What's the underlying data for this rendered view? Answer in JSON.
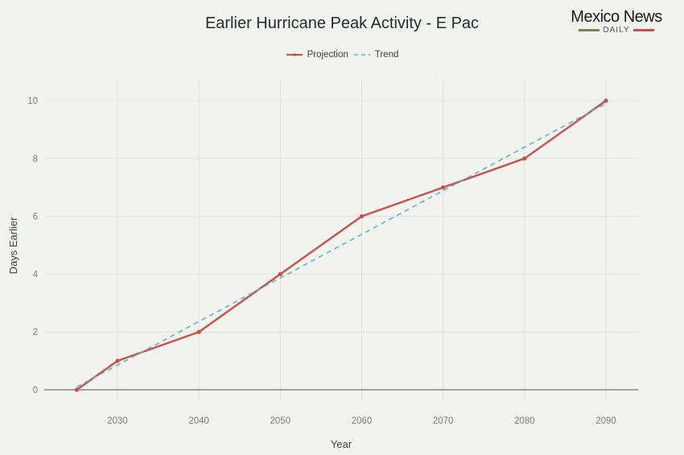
{
  "chart_data": {
    "type": "line",
    "title": "Earlier Hurricane Peak Activity - E Pac",
    "xlabel": "Year",
    "ylabel": "Days Earlier",
    "xlim": [
      2020,
      2094
    ],
    "ylim": [
      -0.4,
      10.7
    ],
    "x_ticks": [
      2030,
      2040,
      2050,
      2060,
      2070,
      2080,
      2090
    ],
    "y_ticks": [
      0,
      2,
      4,
      6,
      8,
      10
    ],
    "grid": true,
    "legend_position": "top-center",
    "series": [
      {
        "name": "Projection",
        "style": "solid-with-markers",
        "color": "#c8504a",
        "x": [
          2025,
          2030,
          2040,
          2050,
          2060,
          2070,
          2080,
          2090
        ],
        "y": [
          0,
          1,
          2,
          4,
          6,
          7,
          8,
          10
        ]
      },
      {
        "name": "Trend",
        "style": "dashed",
        "color": "#5bb5c9",
        "x": [
          2025,
          2090
        ],
        "y": [
          0.1,
          9.9
        ]
      }
    ]
  },
  "branding": {
    "name": "Mexico News",
    "sub": "DAILY",
    "green": "#6e8a4e",
    "red": "#c8504a"
  }
}
